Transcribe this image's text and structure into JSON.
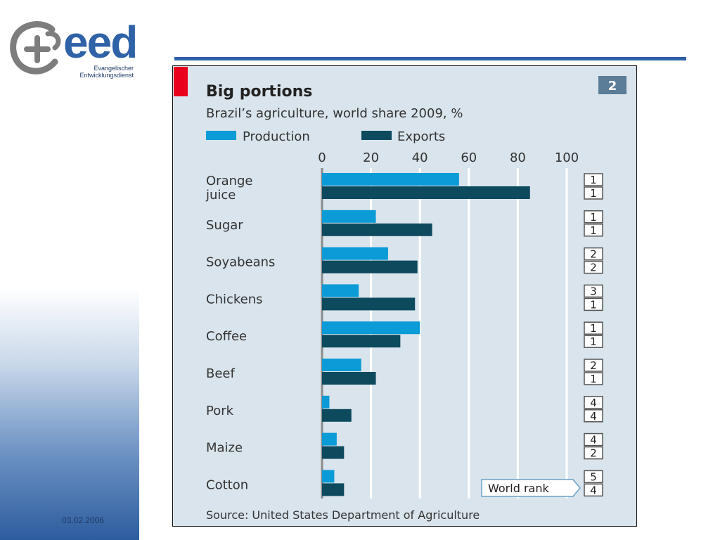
{
  "logo": {
    "brand": "eed",
    "line1": "Evangelischer",
    "line2": "Entwicklungsdienst",
    "icon": "eed-logo-icon"
  },
  "footer": {
    "date": "03.02.2006"
  },
  "colors": {
    "production": "#0b9bd6",
    "exports": "#0d4a5e",
    "panel": "#d9e4ec",
    "accent": "#e8001c",
    "rule": "#2f5fa5"
  },
  "chart_data": {
    "type": "bar",
    "orientation": "horizontal",
    "badge": "2",
    "title": "Big portions",
    "subtitle": "Brazil’s agriculture, world share 2009, %",
    "categories": [
      "Orange\njuice",
      "Sugar",
      "Soyabeans",
      "Chickens",
      "Coffee",
      "Beef",
      "Pork",
      "Maize",
      "Cotton"
    ],
    "series": [
      {
        "name": "Production",
        "values": [
          56,
          22,
          27,
          15,
          40,
          16,
          3,
          6,
          5
        ]
      },
      {
        "name": "Exports",
        "values": [
          85,
          45,
          39,
          38,
          32,
          22,
          12,
          9,
          9
        ]
      }
    ],
    "ticks": [
      "0",
      "20",
      "40",
      "60",
      "80",
      "100"
    ],
    "xlim": [
      0,
      100
    ],
    "grid": true,
    "legend": "top-left",
    "world_rank": {
      "label": "World rank",
      "production": [
        "1",
        "1",
        "2",
        "3",
        "1",
        "2",
        "4",
        "4",
        "5"
      ],
      "exports": [
        "1",
        "1",
        "2",
        "1",
        "1",
        "1",
        "4",
        "2",
        "4"
      ]
    },
    "source": "Source: United States Department of Agriculture"
  }
}
